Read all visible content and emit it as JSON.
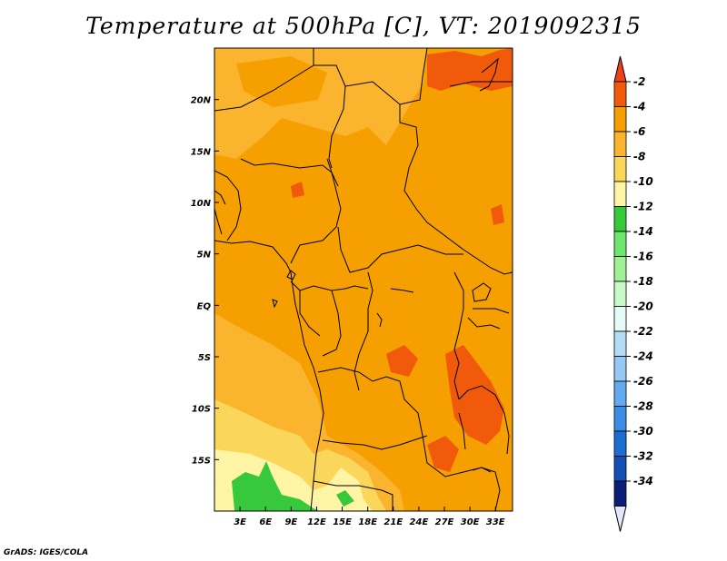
{
  "title": "Temperature at 500hPa [C], VT: 2019092315",
  "credit": "GrADS: IGES/COLA",
  "map": {
    "lon_range": [
      0,
      35
    ],
    "lat_range": [
      -20,
      25
    ],
    "lat_ticks": [
      {
        "value": 20,
        "label": "20N"
      },
      {
        "value": 15,
        "label": "15N"
      },
      {
        "value": 10,
        "label": "10N"
      },
      {
        "value": 5,
        "label": "5N"
      },
      {
        "value": 0,
        "label": "EQ"
      },
      {
        "value": -5,
        "label": "5S"
      },
      {
        "value": -10,
        "label": "10S"
      },
      {
        "value": -15,
        "label": "15S"
      }
    ],
    "lon_ticks": [
      {
        "value": 3,
        "label": "3E"
      },
      {
        "value": 6,
        "label": "6E"
      },
      {
        "value": 9,
        "label": "9E"
      },
      {
        "value": 12,
        "label": "12E"
      },
      {
        "value": 15,
        "label": "15E"
      },
      {
        "value": 18,
        "label": "18E"
      },
      {
        "value": 21,
        "label": "21E"
      },
      {
        "value": 24,
        "label": "24E"
      },
      {
        "value": 27,
        "label": "27E"
      },
      {
        "value": 30,
        "label": "30E"
      },
      {
        "value": 33,
        "label": "33E"
      }
    ]
  },
  "colorbar": {
    "top_triangle_color": "#f04018",
    "bottom_triangle_color": "#e6e6fa",
    "bins": [
      {
        "label": "-2",
        "color": "#f05a0a"
      },
      {
        "label": "-4",
        "color": "#f5a000"
      },
      {
        "label": "-6",
        "color": "#fab42d"
      },
      {
        "label": "-8",
        "color": "#fad75a"
      },
      {
        "label": "-10",
        "color": "#fff5a5"
      },
      {
        "label": "-12",
        "color": "#38c83c"
      },
      {
        "label": "-14",
        "color": "#6ee66e"
      },
      {
        "label": "-16",
        "color": "#a0f096"
      },
      {
        "label": "-18",
        "color": "#c8fac8"
      },
      {
        "label": "-20",
        "color": "#e6fafa"
      },
      {
        "label": "-22",
        "color": "#b4dcf5"
      },
      {
        "label": "-24",
        "color": "#96c8f5"
      },
      {
        "label": "-26",
        "color": "#64aaf0"
      },
      {
        "label": "-28",
        "color": "#3c8ce6"
      },
      {
        "label": "-30",
        "color": "#1e6ed2"
      },
      {
        "label": "-32",
        "color": "#1450b4"
      },
      {
        "label": "-34",
        "color": "#0a1e78"
      }
    ]
  }
}
